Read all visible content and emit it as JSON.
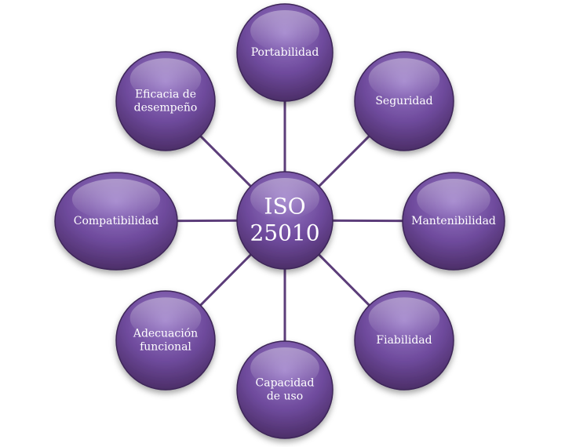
{
  "colors": {
    "node_fill_top": "#8e6cbe",
    "node_fill_mid": "#6a4596",
    "node_fill_bottom": "#4a2f6c",
    "node_stroke": "#3e2658",
    "connector": "#5c3d7a"
  },
  "center": {
    "line1": "ISO",
    "line2": "25010"
  },
  "nodes": [
    {
      "id": "portabilidad",
      "lines": [
        "Portabilidad"
      ]
    },
    {
      "id": "seguridad",
      "lines": [
        "Seguridad"
      ]
    },
    {
      "id": "mantenibilidad",
      "lines": [
        "Mantenibilidad"
      ]
    },
    {
      "id": "fiabilidad",
      "lines": [
        "Fiabilidad"
      ]
    },
    {
      "id": "capacidad-de-uso",
      "lines": [
        "Capacidad",
        "de uso"
      ]
    },
    {
      "id": "adecuacion-funcional",
      "lines": [
        "Adecuación",
        "funcional"
      ]
    },
    {
      "id": "compatibilidad",
      "lines": [
        "Compatibilidad"
      ]
    },
    {
      "id": "eficacia-de-desempeno",
      "lines": [
        "Eficacia de",
        "desempeño"
      ]
    }
  ]
}
